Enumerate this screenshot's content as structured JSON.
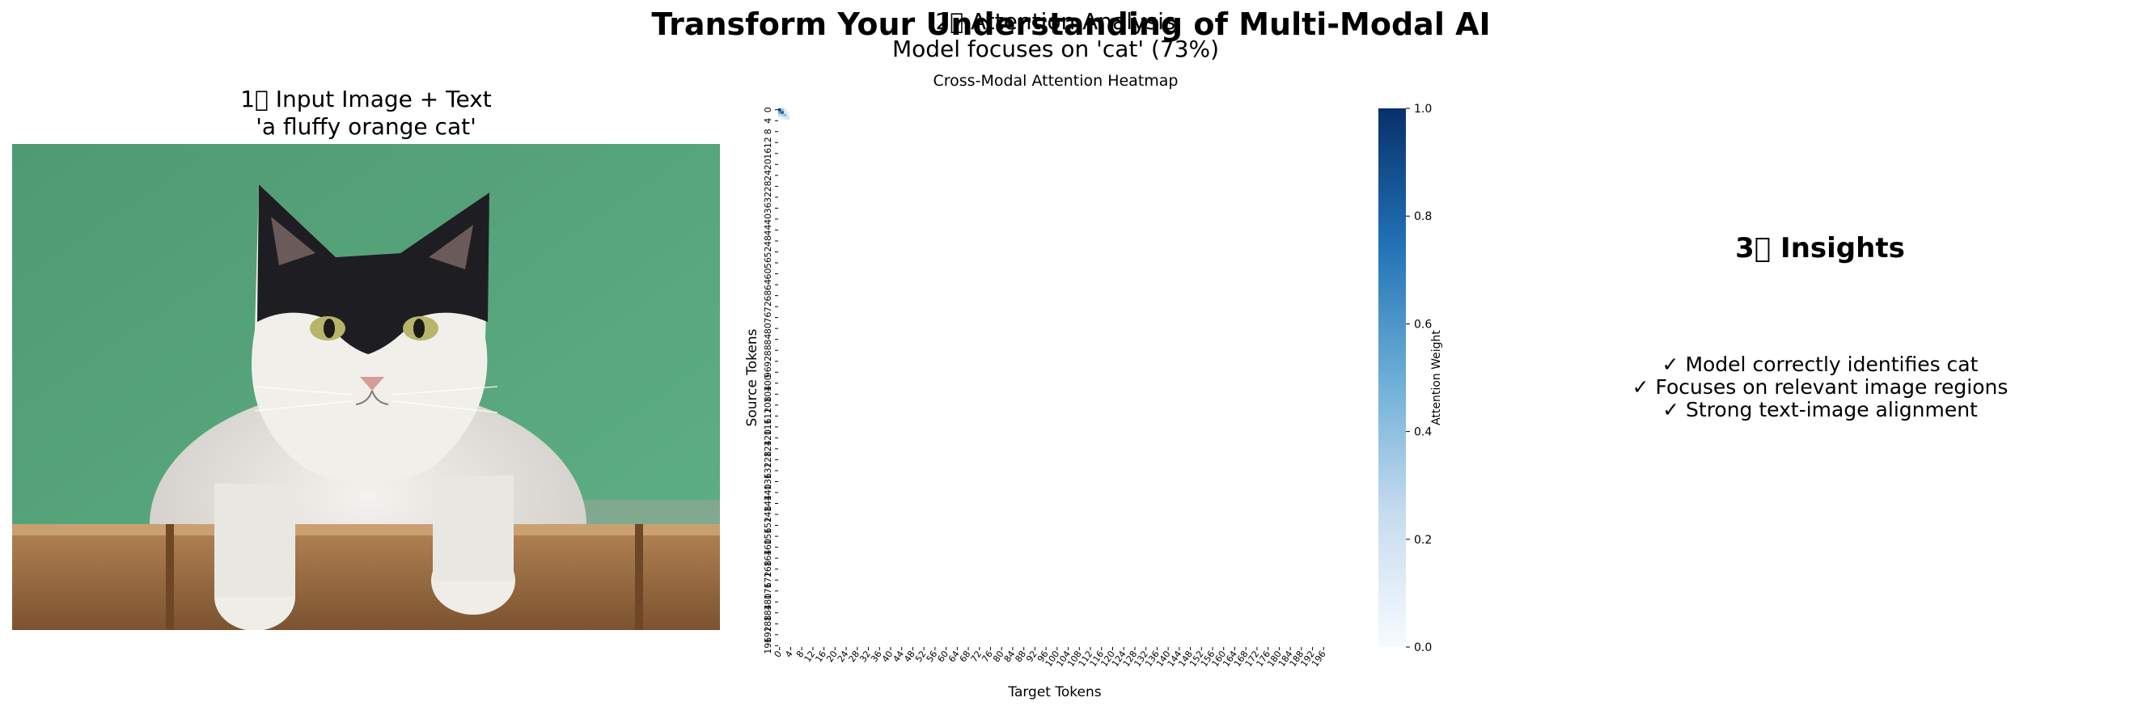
{
  "suptitle": "Transform Your Understanding of Multi-Modal AI",
  "panel1": {
    "title_line1": "1⃣ Input Image + Text",
    "title_line2": "'a fluffy orange cat'"
  },
  "panel2": {
    "title_line1": "2⃣ Attention Analysis",
    "title_line2": "Model focuses on 'cat' (73%)"
  },
  "panel3": {
    "title": "3⃣ Insights",
    "lines": [
      "✓ Model correctly identifies cat",
      "✓ Focuses on relevant image regions",
      "✓ Strong text-image alignment"
    ]
  },
  "chart_data": {
    "type": "heatmap",
    "title": "Cross-Modal Attention Heatmap",
    "xlabel": "Target Tokens",
    "ylabel": "Source Tokens",
    "colorbar_label": "Attention Weight",
    "colorbar_ticks": [
      "0.0",
      "0.2",
      "0.4",
      "0.6",
      "0.8",
      "1.0"
    ],
    "colorbar_range": [
      0,
      1
    ],
    "colormap": "Blues",
    "n_rows": 197,
    "n_cols": 197,
    "row_tick_labels": [
      "0",
      "4",
      "8",
      "12",
      "16",
      "20",
      "24",
      "28",
      "32",
      "36",
      "40",
      "44",
      "48",
      "52",
      "56",
      "60",
      "64",
      "68",
      "72",
      "76",
      "80",
      "84",
      "88",
      "92",
      "96",
      "100",
      "104",
      "108",
      "112",
      "116",
      "120",
      "124",
      "128",
      "132",
      "136",
      "140",
      "144",
      "148",
      "152",
      "156",
      "160",
      "164",
      "168",
      "172",
      "176",
      "180",
      "184",
      "188",
      "192",
      "196"
    ],
    "col_tick_labels": [
      "0",
      "4",
      "8",
      "12",
      "16",
      "20",
      "24",
      "28",
      "32",
      "36",
      "40",
      "44",
      "48",
      "52",
      "56",
      "60",
      "64",
      "68",
      "72",
      "76",
      "80",
      "84",
      "88",
      "92",
      "96",
      "100",
      "104",
      "108",
      "112",
      "116",
      "120",
      "124",
      "128",
      "132",
      "136",
      "140",
      "144",
      "148",
      "152",
      "156",
      "160",
      "164",
      "168",
      "172",
      "176",
      "180",
      "184",
      "188",
      "192",
      "196"
    ],
    "cells": [
      {
        "row": 0,
        "col": 0,
        "value": 0.92
      },
      {
        "row": 0,
        "col": 1,
        "value": 0.35
      },
      {
        "row": 0,
        "col": 2,
        "value": 0.12
      },
      {
        "row": 1,
        "col": 0,
        "value": 0.55
      },
      {
        "row": 1,
        "col": 1,
        "value": 0.85
      },
      {
        "row": 1,
        "col": 2,
        "value": 0.18
      },
      {
        "row": 1,
        "col": 3,
        "value": 0.07
      },
      {
        "row": 2,
        "col": 0,
        "value": 0.22
      },
      {
        "row": 2,
        "col": 1,
        "value": 0.3
      },
      {
        "row": 2,
        "col": 2,
        "value": 0.4
      },
      {
        "row": 2,
        "col": 3,
        "value": 0.1
      },
      {
        "row": 3,
        "col": 1,
        "value": 0.08
      },
      {
        "row": 3,
        "col": 2,
        "value": 0.12
      },
      {
        "row": 3,
        "col": 3,
        "value": 0.2
      }
    ]
  }
}
